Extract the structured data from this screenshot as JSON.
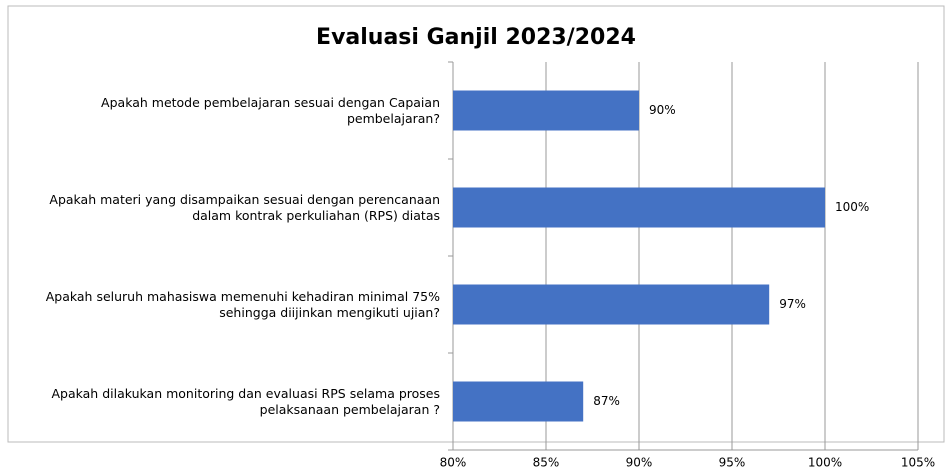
{
  "chart_data": {
    "type": "barh",
    "title": "Evaluasi Ganjil 2023/2024",
    "categories": [
      "Apakah metode pembelajaran sesuai dengan Capaian pembelajaran?",
      "Apakah materi yang disampaikan sesuai dengan perencanaan dalam kontrak perkuliahan (RPS) diatas",
      "Apakah seluruh mahasiswa memenuhi kehadiran minimal 75% sehingga diijinkan mengikuti ujian?",
      "Apakah dilakukan monitoring dan evaluasi RPS selama proses pelaksanaan pembelajaran ?"
    ],
    "values": [
      90,
      100,
      97,
      87
    ],
    "value_labels": [
      "90%",
      "100%",
      "97%",
      "87%"
    ],
    "color": "#4472c4",
    "xlim": [
      80,
      105
    ],
    "xticks": [
      {
        "value": 80,
        "label": "80%"
      },
      {
        "value": 85,
        "label": "85%"
      },
      {
        "value": 90,
        "label": "90%"
      },
      {
        "value": 95,
        "label": "95%"
      },
      {
        "value": 100,
        "label": "100%"
      },
      {
        "value": 105,
        "label": "105%"
      }
    ],
    "grid": true
  }
}
